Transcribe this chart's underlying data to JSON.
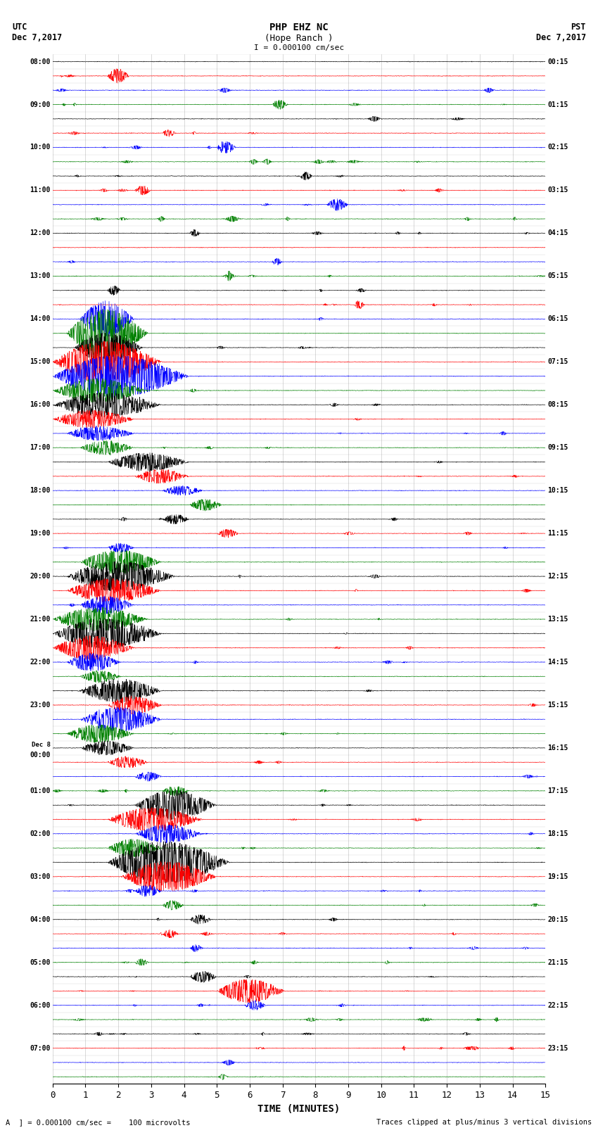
{
  "title_line1": "PHP EHZ NC",
  "title_line2": "(Hope Ranch )",
  "scale_text": "I = 0.000100 cm/sec",
  "xlabel": "TIME (MINUTES)",
  "footer_left": "A  ] = 0.000100 cm/sec =    100 microvolts",
  "footer_right": "Traces clipped at plus/minus 3 vertical divisions",
  "left_times": [
    "08:00",
    "",
    "",
    "09:00",
    "",
    "",
    "10:00",
    "",
    "",
    "11:00",
    "",
    "",
    "12:00",
    "",
    "",
    "13:00",
    "",
    "",
    "14:00",
    "",
    "",
    "15:00",
    "",
    "",
    "16:00",
    "",
    "",
    "17:00",
    "",
    "",
    "18:00",
    "",
    "",
    "19:00",
    "",
    "",
    "20:00",
    "",
    "",
    "21:00",
    "",
    "",
    "22:00",
    "",
    "",
    "23:00",
    "",
    "",
    "Dec 8\n00:00",
    "",
    "",
    "01:00",
    "",
    "",
    "02:00",
    "",
    "",
    "03:00",
    "",
    "",
    "04:00",
    "",
    "",
    "05:00",
    "",
    "",
    "06:00",
    "",
    "",
    "07:00",
    "",
    ""
  ],
  "right_times": [
    "00:15",
    "",
    "",
    "01:15",
    "",
    "",
    "02:15",
    "",
    "",
    "03:15",
    "",
    "",
    "04:15",
    "",
    "",
    "05:15",
    "",
    "",
    "06:15",
    "",
    "",
    "07:15",
    "",
    "",
    "08:15",
    "",
    "",
    "09:15",
    "",
    "",
    "10:15",
    "",
    "",
    "11:15",
    "",
    "",
    "12:15",
    "",
    "",
    "13:15",
    "",
    "",
    "14:15",
    "",
    "",
    "15:15",
    "",
    "",
    "16:15",
    "",
    "",
    "17:15",
    "",
    "",
    "18:15",
    "",
    "",
    "19:15",
    "",
    "",
    "20:15",
    "",
    "",
    "21:15",
    "",
    "",
    "22:15",
    "",
    "",
    "23:15",
    "",
    ""
  ],
  "num_rows": 72,
  "colors_cycle": [
    "black",
    "red",
    "blue",
    "green"
  ],
  "bg_color": "white",
  "grid_color": "#888888",
  "xlim": [
    0,
    15
  ],
  "xticks": [
    0,
    1,
    2,
    3,
    4,
    5,
    6,
    7,
    8,
    9,
    10,
    11,
    12,
    13,
    14,
    15
  ]
}
